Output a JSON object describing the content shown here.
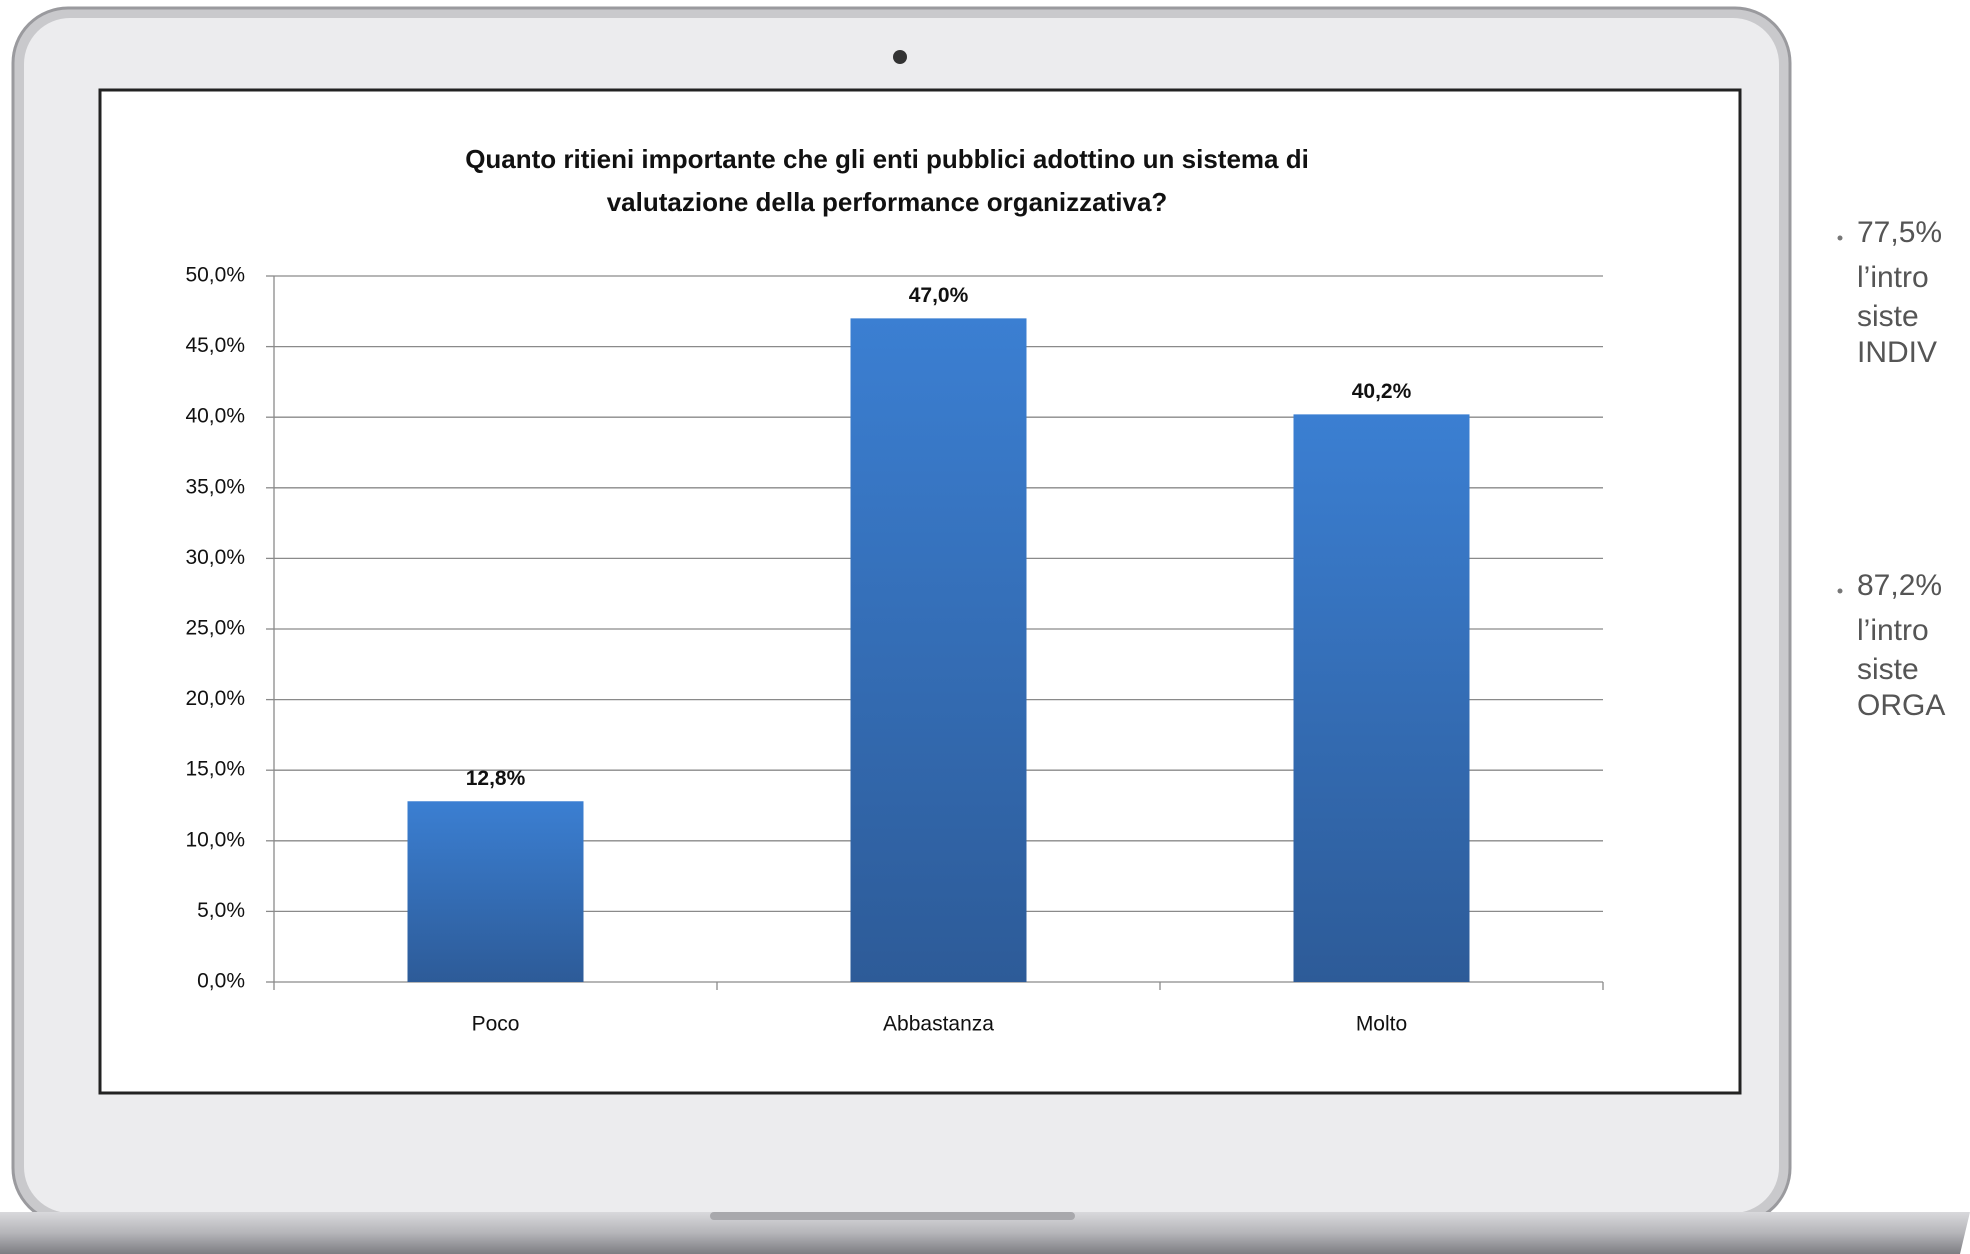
{
  "chart_data": {
    "type": "bar",
    "title": [
      "Quanto ritieni importante che gli enti pubblici adottino un sistema di",
      "valutazione della performance organizzativa?"
    ],
    "categories": [
      "Poco",
      "Abbastanza",
      "Molto"
    ],
    "values": [
      12.8,
      47.0,
      40.2
    ],
    "value_labels": [
      "12,8%",
      "47,0%",
      "40,2%"
    ],
    "color": "#3a7acb",
    "ylim": [
      0,
      50
    ],
    "yticks": [
      {
        "value": 0,
        "label": "0,0%"
      },
      {
        "value": 5,
        "label": "5,0%"
      },
      {
        "value": 10,
        "label": "10,0%"
      },
      {
        "value": 15,
        "label": "15,0%"
      },
      {
        "value": 20,
        "label": "20,0%"
      },
      {
        "value": 25,
        "label": "25,0%"
      },
      {
        "value": 30,
        "label": "30,0%"
      },
      {
        "value": 35,
        "label": "35,0%"
      },
      {
        "value": 40,
        "label": "40,0%"
      },
      {
        "value": 45,
        "label": "45,0%"
      },
      {
        "value": 50,
        "label": "50,0%"
      }
    ],
    "grid": true
  },
  "bullets": [
    [
      "77,5%",
      "l’intro",
      "siste",
      "INDIV"
    ],
    [
      "87,2%",
      "l’intro",
      "siste",
      "ORGA"
    ]
  ]
}
